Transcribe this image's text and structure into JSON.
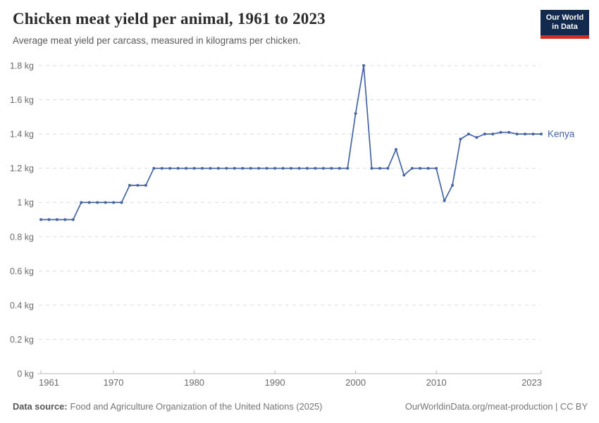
{
  "header": {
    "title": "Chicken meat yield per animal, 1961 to 2023",
    "subtitle": "Average meat yield per carcass, measured in kilograms per chicken.",
    "logo": {
      "line1": "Our World",
      "line2": "in Data",
      "bg_color": "#122A4D",
      "accent_color": "#D22D23"
    }
  },
  "chart_data": {
    "type": "line",
    "title": "Chicken meat yield per animal, 1961 to 2023",
    "subtitle": "Average meat yield per carcass, measured in kilograms per chicken.",
    "xlabel": "",
    "ylabel": "",
    "unit": "kg",
    "x_range": [
      1961,
      2023
    ],
    "ylim": [
      0,
      1.8
    ],
    "grid": "horizontal-dashed",
    "legend_position": "end-of-line-label",
    "colors": {
      "series": "#4565a5",
      "gridline": "#dcdcdc",
      "axis": "#b8b8b8",
      "tick_label": "#6b6b6b"
    },
    "y_ticks": [
      {
        "value": 0,
        "label": "0 kg"
      },
      {
        "value": 0.2,
        "label": "0.2 kg"
      },
      {
        "value": 0.4,
        "label": "0.4 kg"
      },
      {
        "value": 0.6,
        "label": "0.6 kg"
      },
      {
        "value": 0.8,
        "label": "0.8 kg"
      },
      {
        "value": 1,
        "label": "1 kg"
      },
      {
        "value": 1.2,
        "label": "1.2 kg"
      },
      {
        "value": 1.4,
        "label": "1.4 kg"
      },
      {
        "value": 1.6,
        "label": "1.6 kg"
      },
      {
        "value": 1.8,
        "label": "1.8 kg"
      }
    ],
    "x_ticks": [
      {
        "value": 1961,
        "label": "1961",
        "anchor": "start"
      },
      {
        "value": 1970,
        "label": "1970",
        "anchor": "middle"
      },
      {
        "value": 1980,
        "label": "1980",
        "anchor": "middle"
      },
      {
        "value": 1990,
        "label": "1990",
        "anchor": "middle"
      },
      {
        "value": 2000,
        "label": "2000",
        "anchor": "middle"
      },
      {
        "value": 2010,
        "label": "2010",
        "anchor": "middle"
      },
      {
        "value": 2023,
        "label": "2023",
        "anchor": "end"
      }
    ],
    "series": [
      {
        "name": "Kenya",
        "color": "#4565a5",
        "years": [
          1961,
          1962,
          1963,
          1964,
          1965,
          1966,
          1967,
          1968,
          1969,
          1970,
          1971,
          1972,
          1973,
          1974,
          1975,
          1976,
          1977,
          1978,
          1979,
          1980,
          1981,
          1982,
          1983,
          1984,
          1985,
          1986,
          1987,
          1988,
          1989,
          1990,
          1991,
          1992,
          1993,
          1994,
          1995,
          1996,
          1997,
          1998,
          1999,
          2000,
          2001,
          2002,
          2003,
          2004,
          2005,
          2006,
          2007,
          2008,
          2009,
          2010,
          2011,
          2012,
          2013,
          2014,
          2015,
          2016,
          2017,
          2018,
          2019,
          2020,
          2021,
          2022,
          2023
        ],
        "values": [
          0.9,
          0.9,
          0.9,
          0.9,
          0.9,
          1,
          1,
          1,
          1,
          1,
          1,
          1.1,
          1.1,
          1.1,
          1.2,
          1.2,
          1.2,
          1.2,
          1.2,
          1.2,
          1.2,
          1.2,
          1.2,
          1.2,
          1.2,
          1.2,
          1.2,
          1.2,
          1.2,
          1.2,
          1.2,
          1.2,
          1.2,
          1.2,
          1.2,
          1.2,
          1.2,
          1.2,
          1.2,
          1.52,
          1.8,
          1.2,
          1.2,
          1.2,
          1.31,
          1.16,
          1.2,
          1.2,
          1.2,
          1.2,
          1.01,
          1.1,
          1.37,
          1.4,
          1.38,
          1.4,
          1.4,
          1.41,
          1.41,
          1.4,
          1.4,
          1.4,
          1.4
        ]
      }
    ]
  },
  "footer": {
    "source_label": "Data source:",
    "source_text": "Food and Agriculture Organization of the United Nations (2025)",
    "link_text": "OurWorldinData.org/meat-production | CC BY"
  }
}
